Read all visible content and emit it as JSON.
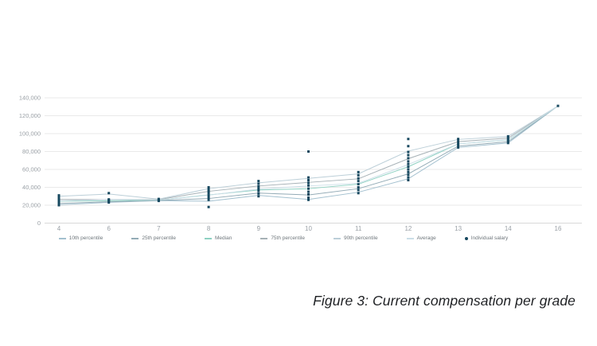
{
  "figure": {
    "caption": "Figure 3: Current compensation per grade"
  },
  "chart_data": {
    "type": "line",
    "title": "",
    "xlabel": "",
    "ylabel": "",
    "grid": true,
    "legend_position": "bottom",
    "categories": [
      "4",
      "6",
      "7",
      "8",
      "9",
      "10",
      "11",
      "12",
      "13",
      "14",
      "16"
    ],
    "ylim": [
      0,
      140000
    ],
    "ytick_interval": 20000,
    "ytick_labels": [
      "0",
      "20,000",
      "40,000",
      "60,000",
      "80,000",
      "100,000",
      "120,000",
      "140,000"
    ],
    "axis_color": "#9aa0a6",
    "gridline_color": "#e9e9e9",
    "baseline_color": "#d9d9d9",
    "series": [
      {
        "name": "10th percentile",
        "color": "#a3c0cf",
        "values": [
          20500,
          23200,
          25100,
          24500,
          31000,
          26500,
          34500,
          49500,
          84500,
          89500,
          131000
        ]
      },
      {
        "name": "25th percentile",
        "color": "#93abb6",
        "values": [
          22000,
          23800,
          25300,
          27500,
          33500,
          31500,
          38500,
          55000,
          86000,
          91000,
          131000
        ]
      },
      {
        "name": "Median",
        "color": "#8ed1c2",
        "values": [
          24500,
          25000,
          25800,
          31500,
          37000,
          38500,
          43500,
          63000,
          88500,
          93000,
          131000
        ]
      },
      {
        "name": "75th percentile",
        "color": "#a6b1b6",
        "values": [
          26500,
          26300,
          26300,
          35500,
          41500,
          45500,
          49500,
          72000,
          91000,
          95000,
          131000
        ]
      },
      {
        "name": "90th percentile",
        "color": "#bccfd8",
        "values": [
          30000,
          32500,
          26800,
          38500,
          45000,
          50000,
          55000,
          80500,
          93500,
          96800,
          131000
        ]
      },
      {
        "name": "Average",
        "color": "#cbdee7",
        "values": [
          24800,
          26400,
          25900,
          31200,
          38000,
          41500,
          44500,
          65500,
          88600,
          93300,
          131000
        ]
      }
    ],
    "scatter": {
      "name": "Individual salary",
      "color": "#17485f",
      "points": [
        {
          "category": "4",
          "values": [
            31000,
            28500,
            26500,
            25000,
            23500,
            22000,
            20000
          ]
        },
        {
          "category": "6",
          "values": [
            33500,
            26500,
            25500,
            24500,
            23000
          ]
        },
        {
          "category": "7",
          "values": [
            27000,
            26200,
            25500,
            24800
          ]
        },
        {
          "category": "8",
          "values": [
            40000,
            37500,
            35500,
            33500,
            31000,
            28500,
            26000,
            18000
          ]
        },
        {
          "category": "9",
          "values": [
            47000,
            44000,
            41000,
            38500,
            36000,
            33000,
            30000
          ]
        },
        {
          "category": "10",
          "values": [
            80000,
            51000,
            48000,
            45000,
            42000,
            38500,
            35000,
            32000,
            28500,
            26000
          ]
        },
        {
          "category": "11",
          "values": [
            57000,
            53500,
            50000,
            47000,
            43500,
            40000,
            37000,
            33500
          ]
        },
        {
          "category": "12",
          "values": [
            94000,
            86000,
            79500,
            76000,
            72500,
            69000,
            66000,
            63000,
            60000,
            57000,
            54000,
            51000,
            48000
          ]
        },
        {
          "category": "13",
          "values": [
            94000,
            91500,
            89000,
            87000,
            84500
          ]
        },
        {
          "category": "14",
          "values": [
            97000,
            95000,
            93000,
            91000,
            89500
          ]
        },
        {
          "category": "16",
          "values": [
            131000
          ]
        }
      ]
    }
  }
}
